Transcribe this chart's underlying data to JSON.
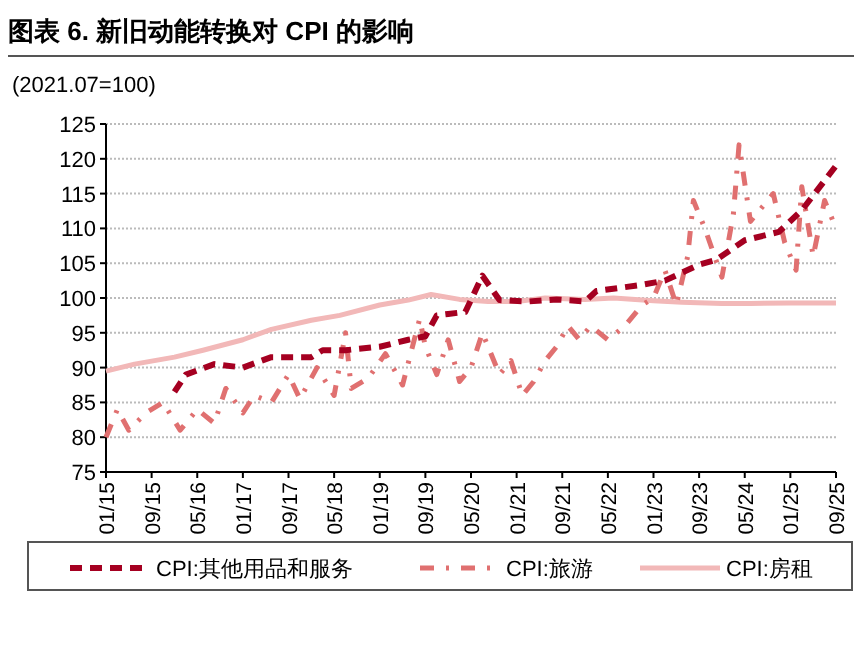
{
  "chart_data": {
    "type": "line",
    "title": "图表 6. 新旧动能转换对 CPI 的影响",
    "ylabel": "(2021.07=100)",
    "xlim": [
      "2015-01",
      "2025-09"
    ],
    "xticks": [
      {
        "value": "2015-01",
        "label": "01/15"
      },
      {
        "value": "2015-09",
        "label": "09/15"
      },
      {
        "value": "2016-05",
        "label": "05/16"
      },
      {
        "value": "2017-01",
        "label": "01/17"
      },
      {
        "value": "2017-09",
        "label": "09/17"
      },
      {
        "value": "2018-05",
        "label": "05/18"
      },
      {
        "value": "2019-01",
        "label": "01/19"
      },
      {
        "value": "2019-09",
        "label": "09/19"
      },
      {
        "value": "2020-05",
        "label": "05/20"
      },
      {
        "value": "2021-01",
        "label": "01/21"
      },
      {
        "value": "2021-09",
        "label": "09/21"
      },
      {
        "value": "2022-05",
        "label": "05/22"
      },
      {
        "value": "2023-01",
        "label": "01/23"
      },
      {
        "value": "2023-09",
        "label": "09/23"
      },
      {
        "value": "2024-05",
        "label": "05/24"
      },
      {
        "value": "2025-01",
        "label": "01/25"
      },
      {
        "value": "2025-09",
        "label": "09/25"
      }
    ],
    "ylim": [
      75,
      125
    ],
    "yticks": [
      75,
      80,
      85,
      90,
      95,
      100,
      105,
      110,
      115,
      120,
      125
    ],
    "grid": "y",
    "legend": "bottom",
    "series": [
      {
        "name": "CPI:其他用品和服务",
        "color": "#a50021",
        "line_style": "dashed",
        "x": [
          "2016-01",
          "2016-03",
          "2016-08",
          "2017-01",
          "2017-06",
          "2018-01",
          "2018-03",
          "2018-07",
          "2019-01",
          "2019-06",
          "2019-09",
          "2019-11",
          "2020-01",
          "2020-04",
          "2020-07",
          "2020-10",
          "2021-03",
          "2021-08",
          "2022-01",
          "2022-03",
          "2022-11",
          "2023-03",
          "2023-09",
          "2023-12",
          "2024-05",
          "2024-11",
          "2025-03",
          "2025-09"
        ],
        "values": [
          86.5,
          89,
          90.5,
          90,
          91.5,
          91.5,
          92.5,
          92.5,
          93,
          94,
          94.5,
          97.5,
          97.7,
          98,
          103.2,
          99.7,
          99.5,
          99.8,
          99.5,
          101,
          101.9,
          102.5,
          104.8,
          105.5,
          108.3,
          109.5,
          112.6,
          119
        ]
      },
      {
        "name": "CPI:旅游",
        "color": "#e07070",
        "line_style": "dotted",
        "x": [
          "2015-01",
          "2015-03",
          "2015-05",
          "2015-08",
          "2015-11",
          "2016-02",
          "2016-05",
          "2016-08",
          "2016-10",
          "2017-01",
          "2017-03",
          "2017-06",
          "2017-09",
          "2017-11",
          "2018-02",
          "2018-05",
          "2018-07",
          "2018-08",
          "2018-11",
          "2019-02",
          "2019-05",
          "2019-08",
          "2019-09",
          "2019-11",
          "2020-01",
          "2020-03",
          "2020-05",
          "2020-07",
          "2020-08",
          "2020-10",
          "2020-12",
          "2021-02",
          "2021-04",
          "2021-06",
          "2021-08",
          "2021-10",
          "2021-12",
          "2022-02",
          "2022-05",
          "2022-08",
          "2022-11",
          "2023-01",
          "2023-03",
          "2023-05",
          "2023-07",
          "2023-08",
          "2023-10",
          "2024-01",
          "2024-03",
          "2024-04",
          "2024-06",
          "2024-08",
          "2024-10",
          "2024-12",
          "2025-02",
          "2025-03",
          "2025-05",
          "2025-07",
          "2025-09"
        ],
        "values": [
          80,
          84,
          81,
          83.5,
          85,
          81,
          84,
          82,
          87,
          83.5,
          86,
          85,
          89,
          85.5,
          90,
          86,
          95,
          87,
          88.5,
          92,
          87.5,
          97,
          93,
          89,
          94,
          88,
          90,
          95,
          93,
          89,
          91,
          86,
          88,
          91,
          93,
          96,
          94,
          96,
          94,
          96,
          99,
          100,
          104,
          99,
          106,
          114,
          110,
          103,
          112,
          122,
          111,
          113,
          115,
          108,
          104,
          116,
          106,
          114,
          110
        ]
      },
      {
        "name": "CPI:房租",
        "color": "#f2b8b8",
        "line_style": "solid",
        "x": [
          "2015-01",
          "2015-06",
          "2016-01",
          "2016-06",
          "2017-01",
          "2017-06",
          "2018-01",
          "2018-06",
          "2019-01",
          "2019-06",
          "2019-10",
          "2020-03",
          "2020-08",
          "2021-01",
          "2021-06",
          "2022-01",
          "2022-06",
          "2023-01",
          "2023-06",
          "2024-01",
          "2024-06",
          "2025-01",
          "2025-09"
        ],
        "values": [
          89.5,
          90.5,
          91.5,
          92.5,
          94,
          95.5,
          96.8,
          97.5,
          99,
          99.7,
          100.5,
          99.8,
          99.5,
          99.5,
          100,
          99.8,
          100,
          99.6,
          99.4,
          99.2,
          99.2,
          99.3,
          99.3
        ]
      }
    ]
  }
}
